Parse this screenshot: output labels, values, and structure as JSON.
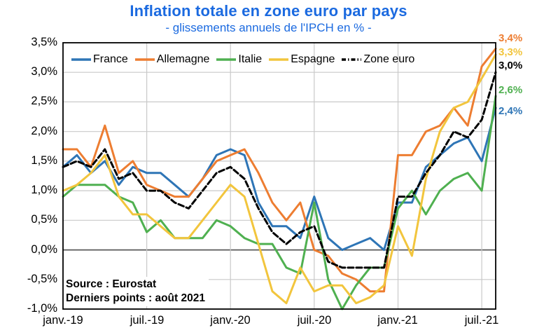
{
  "page": {
    "title": "Inflation totale en zone euro par pays",
    "subtitle": "- glissements annuels de l'IPCH en % -",
    "title_color": "#1B6AE0"
  },
  "chart_data": {
    "type": "line",
    "title": "Inflation totale en zone euro par pays",
    "subtitle": "- glissements annuels de l'IPCH en % -",
    "x_description": "monthly points from janv.-19 to août-21",
    "n_points": 32,
    "ylim": [
      -1.0,
      3.5
    ],
    "y_tick_step": 0.5,
    "grid": true,
    "zero_line": true,
    "legend_position": "top-inside",
    "y_ticks": [
      "3,5%",
      "3,0%",
      "2,5%",
      "2,0%",
      "1,5%",
      "1,0%",
      "0,5%",
      "0,0%",
      "-0,5%",
      "-1,0%"
    ],
    "x_ticks": [
      {
        "index": 0,
        "label": "janv.-19"
      },
      {
        "index": 6,
        "label": "juil.-19"
      },
      {
        "index": 12,
        "label": "janv.-20"
      },
      {
        "index": 18,
        "label": "juil.-20"
      },
      {
        "index": 24,
        "label": "janv.-21"
      },
      {
        "index": 30,
        "label": "juil.-21"
      }
    ],
    "series": [
      {
        "name": "France",
        "color": "#2E75B6",
        "dash": "",
        "end_label": "2,4%",
        "end_label_dy": 5,
        "values": [
          1.4,
          1.6,
          1.3,
          1.5,
          1.1,
          1.4,
          1.3,
          1.3,
          1.1,
          0.9,
          1.2,
          1.6,
          1.7,
          1.6,
          0.8,
          0.4,
          0.4,
          0.2,
          0.9,
          0.2,
          0.0,
          0.1,
          0.2,
          0.0,
          0.8,
          0.8,
          1.4,
          1.6,
          1.8,
          1.9,
          1.5,
          2.4
        ]
      },
      {
        "name": "Allemagne",
        "color": "#ED7D31",
        "dash": "",
        "end_label": "3,4%",
        "end_label_dy": -14,
        "values": [
          1.7,
          1.7,
          1.4,
          2.1,
          1.3,
          1.5,
          1.1,
          1.0,
          0.9,
          0.9,
          1.2,
          1.5,
          1.6,
          1.7,
          1.3,
          0.8,
          0.5,
          0.8,
          0.0,
          -0.1,
          -0.4,
          -0.5,
          -0.7,
          -0.7,
          1.6,
          1.6,
          2.0,
          2.1,
          2.4,
          2.1,
          3.1,
          3.4
        ]
      },
      {
        "name": "Italie",
        "color": "#4FB050",
        "dash": "",
        "end_label": "2,6%",
        "end_label_dy": -8,
        "values": [
          0.9,
          1.1,
          1.1,
          1.1,
          0.9,
          0.8,
          0.3,
          0.5,
          0.2,
          0.2,
          0.2,
          0.5,
          0.4,
          0.2,
          0.1,
          0.1,
          -0.3,
          -0.4,
          0.8,
          -0.5,
          -1.0,
          -0.6,
          -0.3,
          -0.3,
          0.7,
          1.0,
          0.6,
          1.0,
          1.2,
          1.3,
          1.0,
          2.6
        ]
      },
      {
        "name": "Espagne",
        "color": "#F2C53D",
        "dash": "",
        "end_label": "3,3%",
        "end_label_dy": -3,
        "values": [
          1.0,
          1.1,
          1.3,
          1.6,
          0.9,
          0.6,
          0.6,
          0.4,
          0.2,
          0.2,
          0.5,
          0.8,
          1.1,
          0.9,
          0.1,
          -0.7,
          -0.9,
          -0.3,
          -0.7,
          -0.6,
          -0.6,
          -0.9,
          -0.8,
          -0.6,
          0.4,
          -0.1,
          1.2,
          2.0,
          2.4,
          2.5,
          2.9,
          3.3
        ]
      },
      {
        "name": "Zone euro",
        "color": "#000000",
        "dash": "8 4",
        "end_label": "3,0%",
        "end_label_dy": -9,
        "values": [
          1.4,
          1.5,
          1.4,
          1.7,
          1.2,
          1.3,
          1.0,
          1.0,
          0.8,
          0.7,
          1.0,
          1.3,
          1.4,
          1.2,
          0.7,
          0.3,
          0.1,
          0.3,
          0.4,
          -0.2,
          -0.3,
          -0.3,
          -0.3,
          -0.3,
          0.9,
          0.9,
          1.3,
          1.6,
          2.0,
          1.9,
          2.2,
          3.0
        ]
      }
    ],
    "annotations": [
      "Source : Eurostat",
      "Derniers points : août 2021"
    ],
    "colors": {
      "grid": "#C9C9C9",
      "zero_line": "#595959",
      "frame": "#000000"
    }
  }
}
